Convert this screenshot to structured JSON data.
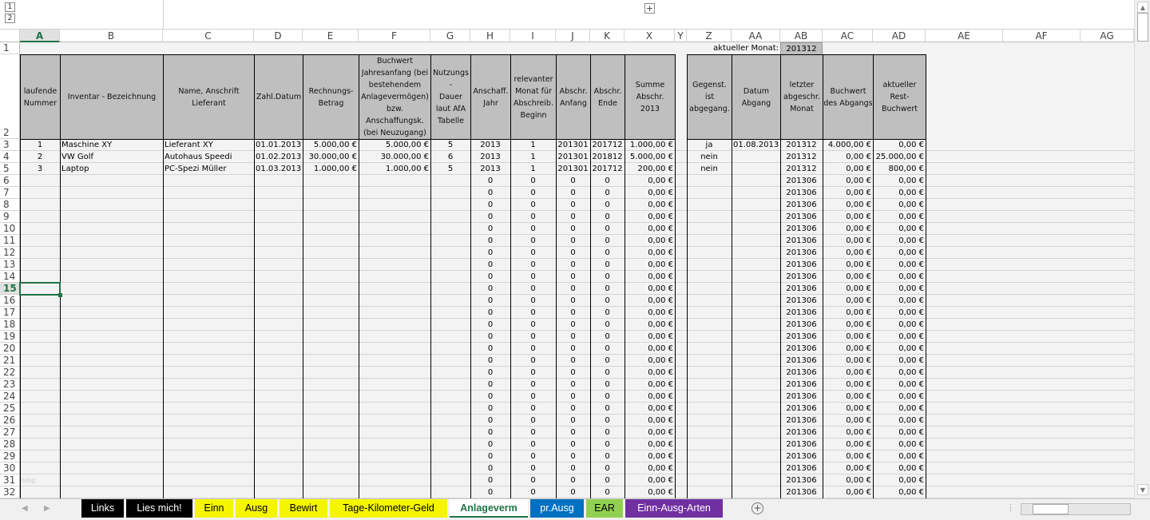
{
  "outline": {
    "levels": [
      "1",
      "2"
    ],
    "expand_label": "+"
  },
  "columns": [
    "A",
    "B",
    "C",
    "D",
    "E",
    "F",
    "G",
    "H",
    "I",
    "J",
    "K",
    "X",
    "Y",
    "Z",
    "AA",
    "AB",
    "AC",
    "AD",
    "AE",
    "AF",
    "AG"
  ],
  "selected_column": "A",
  "selected_row": "15",
  "row1": {
    "label": "aktueller Monat:",
    "value": "201312"
  },
  "headers": {
    "A": "laufende\nNummer",
    "B": "Inventar - Bezeichnung",
    "C": "Name, Anschrift\nLieferant",
    "D": "Zahl.Datum",
    "E": "Rechnungs-\nBetrag",
    "F": "Buchwert\nJahresanfang (bei\nbestehendem\nAnlagevermögen)\nbzw.\nAnschaffungsk.\n(bei Neuzugang)",
    "G": "Nutzungs\n-\nDauer\nlaut AfA\nTabelle",
    "H": "Anschaff.\nJahr",
    "I": "relevanter\nMonat für\nAbschreib.\nBeginn",
    "J": "Abschr.\nAnfang",
    "K": "Abschr.\nEnde",
    "X": "Summe\nAbschr.\n2013",
    "Z": "Gegenst.\nist\nabgegang.",
    "AA": "Datum\nAbgang",
    "AB": "letzter\nabgeschr.\nMonat",
    "AC": "Buchwert\ndes Abgangs",
    "AD": "aktueller\nRest-\nBuchwert"
  },
  "rows": [
    {
      "n": "3",
      "cells": {
        "A": "1",
        "B": "Maschine XY",
        "C": "Lieferant XY",
        "D": "01.01.2013",
        "E": "5.000,00 €",
        "F": "5.000,00 €",
        "G": "5",
        "H": "2013",
        "I": "1",
        "J": "201301",
        "K": "201712",
        "X": "1.000,00 €",
        "Z": "ja",
        "AA": "01.08.2013",
        "AB": "201312",
        "AC": "4.000,00 €",
        "AD": "0,00 €"
      }
    },
    {
      "n": "4",
      "cells": {
        "A": "2",
        "B": "VW Golf",
        "C": "Autohaus Speedi",
        "D": "01.02.2013",
        "E": "30.000,00 €",
        "F": "30.000,00 €",
        "G": "6",
        "H": "2013",
        "I": "1",
        "J": "201301",
        "K": "201812",
        "X": "5.000,00 €",
        "Z": "nein",
        "AB": "201312",
        "AC": "0,00 €",
        "AD": "25.000,00 €"
      }
    },
    {
      "n": "5",
      "cells": {
        "A": "3",
        "B": "Laptop",
        "C": "PC-Spezi Müller",
        "D": "01.03.2013",
        "E": "1.000,00 €",
        "F": "1.000,00 €",
        "G": "5",
        "H": "2013",
        "I": "1",
        "J": "201301",
        "K": "201712",
        "X": "200,00 €",
        "Z": "nein",
        "AB": "201312",
        "AC": "0,00 €",
        "AD": "800,00 €"
      }
    },
    {
      "n": "6",
      "cells": {
        "H": "0",
        "I": "0",
        "J": "0",
        "K": "0",
        "X": "0,00 €",
        "AB": "201306",
        "AC": "0,00 €",
        "AD": "0,00 €"
      }
    },
    {
      "n": "7",
      "cells": {
        "H": "0",
        "I": "0",
        "J": "0",
        "K": "0",
        "X": "0,00 €",
        "AB": "201306",
        "AC": "0,00 €",
        "AD": "0,00 €"
      }
    },
    {
      "n": "8",
      "cells": {
        "H": "0",
        "I": "0",
        "J": "0",
        "K": "0",
        "X": "0,00 €",
        "AB": "201306",
        "AC": "0,00 €",
        "AD": "0,00 €"
      }
    },
    {
      "n": "9",
      "cells": {
        "H": "0",
        "I": "0",
        "J": "0",
        "K": "0",
        "X": "0,00 €",
        "AB": "201306",
        "AC": "0,00 €",
        "AD": "0,00 €"
      }
    },
    {
      "n": "10",
      "cells": {
        "H": "0",
        "I": "0",
        "J": "0",
        "K": "0",
        "X": "0,00 €",
        "AB": "201306",
        "AC": "0,00 €",
        "AD": "0,00 €"
      }
    },
    {
      "n": "11",
      "cells": {
        "H": "0",
        "I": "0",
        "J": "0",
        "K": "0",
        "X": "0,00 €",
        "AB": "201306",
        "AC": "0,00 €",
        "AD": "0,00 €"
      }
    },
    {
      "n": "12",
      "cells": {
        "H": "0",
        "I": "0",
        "J": "0",
        "K": "0",
        "X": "0,00 €",
        "AB": "201306",
        "AC": "0,00 €",
        "AD": "0,00 €"
      }
    },
    {
      "n": "13",
      "cells": {
        "H": "0",
        "I": "0",
        "J": "0",
        "K": "0",
        "X": "0,00 €",
        "AB": "201306",
        "AC": "0,00 €",
        "AD": "0,00 €"
      }
    },
    {
      "n": "14",
      "cells": {
        "H": "0",
        "I": "0",
        "J": "0",
        "K": "0",
        "X": "0,00 €",
        "AB": "201306",
        "AC": "0,00 €",
        "AD": "0,00 €"
      }
    },
    {
      "n": "15",
      "cells": {
        "H": "0",
        "I": "0",
        "J": "0",
        "K": "0",
        "X": "0,00 €",
        "AB": "201306",
        "AC": "0,00 €",
        "AD": "0,00 €"
      }
    },
    {
      "n": "16",
      "cells": {
        "H": "0",
        "I": "0",
        "J": "0",
        "K": "0",
        "X": "0,00 €",
        "AB": "201306",
        "AC": "0,00 €",
        "AD": "0,00 €"
      }
    },
    {
      "n": "17",
      "cells": {
        "H": "0",
        "I": "0",
        "J": "0",
        "K": "0",
        "X": "0,00 €",
        "AB": "201306",
        "AC": "0,00 €",
        "AD": "0,00 €"
      }
    },
    {
      "n": "18",
      "cells": {
        "H": "0",
        "I": "0",
        "J": "0",
        "K": "0",
        "X": "0,00 €",
        "AB": "201306",
        "AC": "0,00 €",
        "AD": "0,00 €"
      }
    },
    {
      "n": "19",
      "cells": {
        "H": "0",
        "I": "0",
        "J": "0",
        "K": "0",
        "X": "0,00 €",
        "AB": "201306",
        "AC": "0,00 €",
        "AD": "0,00 €"
      }
    },
    {
      "n": "20",
      "cells": {
        "H": "0",
        "I": "0",
        "J": "0",
        "K": "0",
        "X": "0,00 €",
        "AB": "201306",
        "AC": "0,00 €",
        "AD": "0,00 €"
      }
    },
    {
      "n": "21",
      "cells": {
        "H": "0",
        "I": "0",
        "J": "0",
        "K": "0",
        "X": "0,00 €",
        "AB": "201306",
        "AC": "0,00 €",
        "AD": "0,00 €"
      }
    },
    {
      "n": "22",
      "cells": {
        "H": "0",
        "I": "0",
        "J": "0",
        "K": "0",
        "X": "0,00 €",
        "AB": "201306",
        "AC": "0,00 €",
        "AD": "0,00 €"
      }
    },
    {
      "n": "23",
      "cells": {
        "H": "0",
        "I": "0",
        "J": "0",
        "K": "0",
        "X": "0,00 €",
        "AB": "201306",
        "AC": "0,00 €",
        "AD": "0,00 €"
      }
    },
    {
      "n": "24",
      "cells": {
        "H": "0",
        "I": "0",
        "J": "0",
        "K": "0",
        "X": "0,00 €",
        "AB": "201306",
        "AC": "0,00 €",
        "AD": "0,00 €"
      }
    },
    {
      "n": "25",
      "cells": {
        "H": "0",
        "I": "0",
        "J": "0",
        "K": "0",
        "X": "0,00 €",
        "AB": "201306",
        "AC": "0,00 €",
        "AD": "0,00 €"
      }
    },
    {
      "n": "26",
      "cells": {
        "H": "0",
        "I": "0",
        "J": "0",
        "K": "0",
        "X": "0,00 €",
        "AB": "201306",
        "AC": "0,00 €",
        "AD": "0,00 €"
      }
    },
    {
      "n": "27",
      "cells": {
        "H": "0",
        "I": "0",
        "J": "0",
        "K": "0",
        "X": "0,00 €",
        "AB": "201306",
        "AC": "0,00 €",
        "AD": "0,00 €"
      }
    },
    {
      "n": "28",
      "cells": {
        "H": "0",
        "I": "0",
        "J": "0",
        "K": "0",
        "X": "0,00 €",
        "AB": "201306",
        "AC": "0,00 €",
        "AD": "0,00 €"
      }
    },
    {
      "n": "29",
      "cells": {
        "H": "0",
        "I": "0",
        "J": "0",
        "K": "0",
        "X": "0,00 €",
        "AB": "201306",
        "AC": "0,00 €",
        "AD": "0,00 €"
      }
    },
    {
      "n": "30",
      "cells": {
        "H": "0",
        "I": "0",
        "J": "0",
        "K": "0",
        "X": "0,00 €",
        "AB": "201306",
        "AC": "0,00 €",
        "AD": "0,00 €"
      }
    },
    {
      "n": "31",
      "cells": {
        "A": "blog",
        "H": "0",
        "I": "0",
        "J": "0",
        "K": "0",
        "X": "0,00 €",
        "AB": "201306",
        "AC": "0,00 €",
        "AD": "0,00 €"
      }
    },
    {
      "n": "32",
      "cells": {
        "H": "0",
        "I": "0",
        "J": "0",
        "K": "0",
        "X": "0,00 €",
        "AB": "201306",
        "AC": "0,00 €",
        "AD": "0,00 €"
      }
    }
  ],
  "sheet_tabs": [
    {
      "label": "Links",
      "bg": "#000000",
      "fg": "#ffffff"
    },
    {
      "label": "Lies mich!",
      "bg": "#000000",
      "fg": "#ffffff"
    },
    {
      "label": "Einn",
      "bg": "#f5f500",
      "fg": "#000000"
    },
    {
      "label": "Ausg",
      "bg": "#f5f500",
      "fg": "#000000"
    },
    {
      "label": "Bewirt",
      "bg": "#f5f500",
      "fg": "#000000"
    },
    {
      "label": "Tage-Kilometer-Geld",
      "bg": "#f5f500",
      "fg": "#000000"
    },
    {
      "label": "Anlageverm",
      "bg": "#ffffff",
      "fg": "#217346",
      "active": true
    },
    {
      "label": "pr.Ausg",
      "bg": "#0070c0",
      "fg": "#ffffff"
    },
    {
      "label": "EAR",
      "bg": "#92d050",
      "fg": "#000000"
    },
    {
      "label": "Einn-Ausg-Arten",
      "bg": "#7030a0",
      "fg": "#ffffff"
    }
  ],
  "add_sheet_label": "+",
  "colors": {
    "accent": "#217346",
    "header_fill": "#bfbfbf"
  }
}
